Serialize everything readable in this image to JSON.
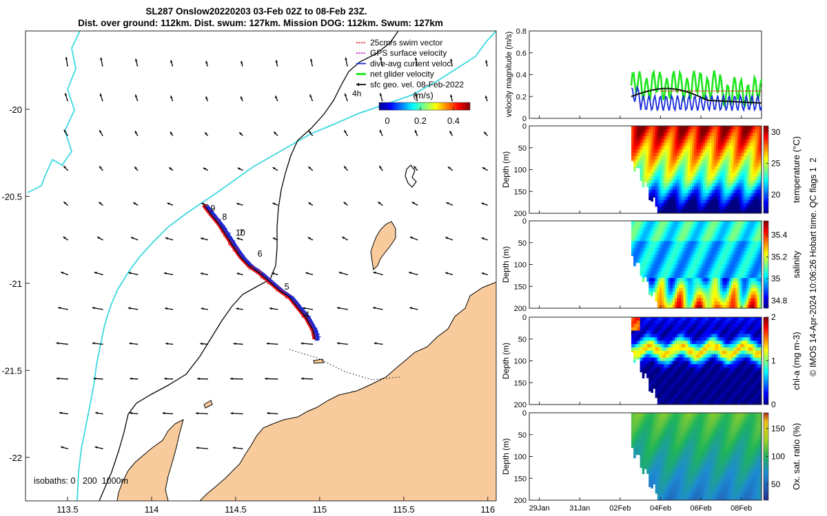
{
  "header": {
    "line1": "SL287 Onslow20220203 03-Feb 02Z to 08-Feb 23Z.",
    "line2": "Dist. over ground: 112km. Dist. swum: 127km. Mission DOG: 112km. Swum: 127km"
  },
  "side_label": "© IMOS 14-Apr-2024 10:06:26 Hobart time. QC flags 1  2",
  "colors": {
    "swim_vector": "#e8141b",
    "gps_velocity": "#c020c0",
    "dive_avg": "#1428d8",
    "net_velocity": "#1ee61e",
    "geo_vel": "#000000",
    "land": "#f9cb9c",
    "isobath_200": "#3ad8e0",
    "isobath_1000": "#000000",
    "coast_shelf": "#000000"
  },
  "chart_data": [
    {
      "type": "scatter",
      "id": "map",
      "xlim": [
        113.25,
        116.05
      ],
      "ylim": [
        -22.25,
        -19.55
      ],
      "xticks": [
        "113.5",
        "114",
        "114.5",
        "115",
        "115.5",
        "116"
      ],
      "xtick_values": [
        113.5,
        114,
        114.5,
        115,
        115.5,
        116
      ],
      "yticks": [
        "-20",
        "-20.5",
        "-21",
        "-21.5",
        "-22"
      ],
      "ytick_values": [
        -20,
        -20.5,
        -21,
        -21.5,
        -22
      ],
      "legend": {
        "placement": "top-right",
        "entries": [
          {
            "label": "25cm/s swim vector",
            "color_key": "swim_vector"
          },
          {
            "label": "GPS surface velocity",
            "color_key": "gps_velocity"
          },
          {
            "label": "dive-avg current veloc.",
            "color_key": "dive_avg"
          },
          {
            "label": "net glider velocity",
            "color_key": "net_velocity"
          },
          {
            "label": "sfc geo. vel. 08-Feb-2022",
            "color_key": "geo_vel"
          }
        ]
      },
      "colorbar": {
        "label": "(m/s)",
        "range": [
          -0.05,
          0.5
        ],
        "ticks": [
          "0",
          "0.2",
          "0.4"
        ],
        "tick_values": [
          0,
          0.2,
          0.4
        ]
      },
      "annotation_4h": "4h",
      "isobath_label": "isobaths: 0   200  1000m",
      "track": [
        [
          114.31,
          -20.55
        ],
        [
          114.35,
          -20.6
        ],
        [
          114.4,
          -20.66
        ],
        [
          114.44,
          -20.72
        ],
        [
          114.48,
          -20.78
        ],
        [
          114.53,
          -20.85
        ],
        [
          114.58,
          -20.9
        ],
        [
          114.64,
          -20.94
        ],
        [
          114.7,
          -20.99
        ],
        [
          114.76,
          -21.04
        ],
        [
          114.82,
          -21.08
        ],
        [
          114.87,
          -21.14
        ],
        [
          114.92,
          -21.2
        ],
        [
          114.96,
          -21.27
        ],
        [
          114.97,
          -21.32
        ]
      ],
      "day_markers": [
        {
          "label": "9",
          "x": 114.35,
          "y": -20.57
        },
        {
          "label": "8",
          "x": 114.42,
          "y": -20.62
        },
        {
          "label": "10",
          "x": 114.5,
          "y": -20.71
        },
        {
          "label": "7",
          "x": 114.52,
          "y": -20.71
        },
        {
          "label": "6",
          "x": 114.63,
          "y": -20.83
        },
        {
          "label": "5",
          "x": 114.79,
          "y": -21.02
        },
        {
          "label": "4",
          "x": 114.91,
          "y": -21.18
        }
      ],
      "current_vectors": {
        "lon_start": 113.5,
        "lon_step": 0.208,
        "lon_count": 13,
        "lat_start": -19.75,
        "lat_step": -0.2,
        "lat_count": 12,
        "u_east": [
          -0.03,
          -0.04,
          -0.06,
          -0.08,
          -0.1,
          -0.12,
          -0.15,
          -0.17,
          -0.19,
          -0.21,
          -0.2,
          -0.19
        ],
        "v_north": [
          0.14,
          0.12,
          0.09,
          0.07,
          0.05,
          0.05,
          0.04,
          0.03,
          0.02,
          0.01,
          0.02,
          0.03
        ]
      }
    },
    {
      "type": "line",
      "id": "velocity",
      "ylabel": "velocity magnitude (m/s)",
      "ylim": [
        0,
        0.8
      ],
      "yticks": [
        "0",
        "0.2",
        "0.4",
        "0.6",
        "0.8"
      ],
      "ytick_values": [
        0,
        0.2,
        0.4,
        0.6,
        0.8
      ],
      "xlim": [
        0,
        11.5
      ],
      "start": 5.05,
      "end": 11.5,
      "swim_level": 0.25
    },
    {
      "type": "heatmap",
      "id": "temperature",
      "ylabel": "Depth (m)",
      "yticks": [
        "0",
        "50",
        "100",
        "150",
        "200"
      ],
      "colorbar_label": "temperature (°C)",
      "clim": [
        17,
        31
      ],
      "cb_ticks": [
        "30",
        "25",
        "20"
      ],
      "cb_tick_values": [
        30,
        25,
        20
      ]
    },
    {
      "type": "heatmap",
      "id": "salinity",
      "ylabel": "Depth (m)",
      "yticks": [
        "0",
        "50",
        "100",
        "150",
        "200"
      ],
      "colorbar_label": "salinity",
      "clim": [
        34.73,
        35.53
      ],
      "cb_ticks": [
        "35.4",
        "35.2",
        "35",
        "34.8"
      ],
      "cb_tick_values": [
        35.4,
        35.2,
        35,
        34.8
      ]
    },
    {
      "type": "heatmap",
      "id": "chla",
      "ylabel": "Depth (m)",
      "yticks": [
        "0",
        "50",
        "100",
        "150",
        "200"
      ],
      "colorbar_label": "chl-a (mg m-3)",
      "clim": [
        0,
        2
      ],
      "cb_ticks": [
        "2",
        "1",
        "0"
      ],
      "cb_tick_values": [
        2,
        1,
        0
      ]
    },
    {
      "type": "heatmap",
      "id": "oxygen",
      "ylabel": "Depth (m)",
      "yticks": [
        "0",
        "50",
        "100",
        "150",
        "200"
      ],
      "colorbar_label": "Ox. sat. ratio (%)",
      "clim": [
        22,
        178
      ],
      "cb_ticks": [
        "150",
        "100",
        "50"
      ],
      "cb_tick_values": [
        150,
        100,
        50
      ],
      "xticks": [
        "29Jan",
        "31Jan",
        "02Feb",
        "04Feb",
        "06Feb",
        "08Feb"
      ],
      "xtick_values": [
        0.5,
        2.5,
        4.5,
        6.5,
        8.5,
        10.5
      ]
    }
  ]
}
